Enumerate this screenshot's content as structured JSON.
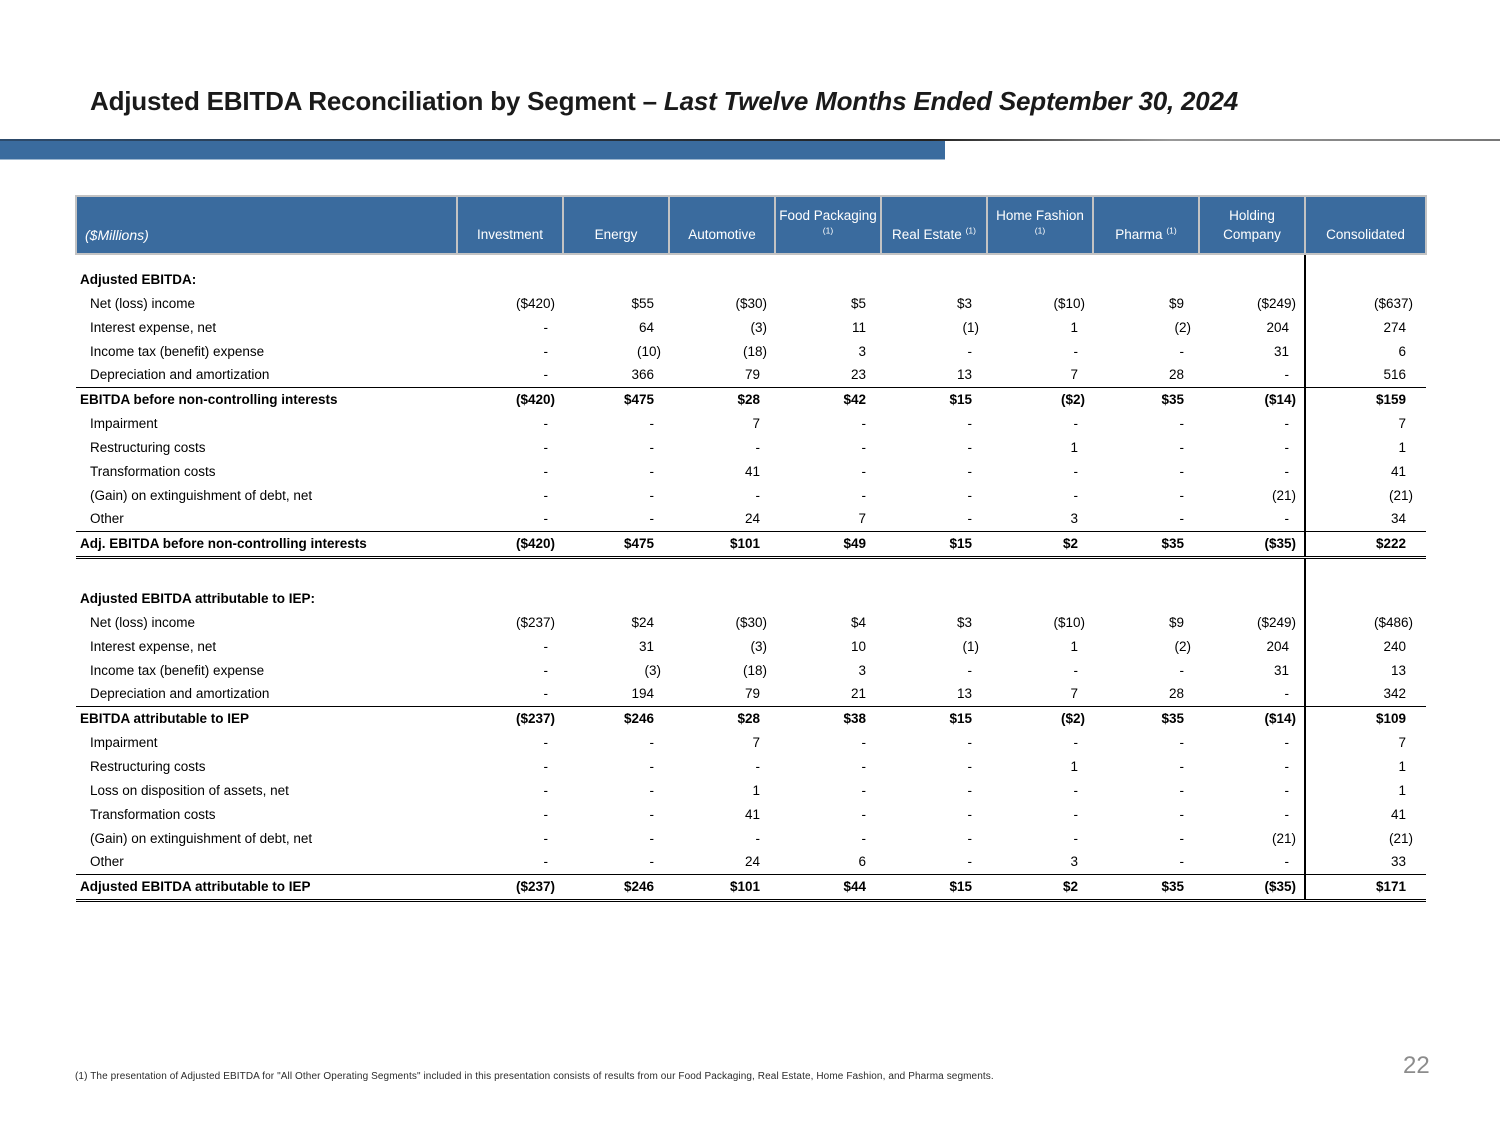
{
  "slide": {
    "title": {
      "main": "Adjusted EBITDA Reconciliation by Segment – ",
      "emphasis": "Last Twelve Months Ended September 30, 2024"
    },
    "page_number": "22",
    "footnote": "(1) The presentation of Adjusted EBITDA for \"All Other Operating Segments\" included in this presentation consists of results from our Food Packaging, Real Estate, Home Fashion, and Pharma segments."
  },
  "colors": {
    "header_bg": "#3a6b9e",
    "accent_bar": "#3a6b9e",
    "title_text": "#1a1a1a",
    "page_number_text": "#8c8c8c",
    "divider_line": "#000000"
  },
  "table": {
    "unit_label": "($Millions)",
    "columns": [
      {
        "label": "Investment",
        "footnote_ref": ""
      },
      {
        "label": "Energy",
        "footnote_ref": ""
      },
      {
        "label": "Automotive",
        "footnote_ref": ""
      },
      {
        "label": "Food Packaging",
        "footnote_ref": "(1)"
      },
      {
        "label": "Real Estate",
        "footnote_ref": "(1)"
      },
      {
        "label": "Home Fashion",
        "footnote_ref": "(1)"
      },
      {
        "label": "Pharma",
        "footnote_ref": "(1)"
      },
      {
        "label": "Holding Company",
        "footnote_ref": ""
      },
      {
        "label": "Consolidated",
        "footnote_ref": ""
      }
    ],
    "rows": [
      {
        "type": "spacer-sm",
        "label": ""
      },
      {
        "type": "section",
        "label": "Adjusted EBITDA:"
      },
      {
        "type": "data",
        "label": "Net (loss) income",
        "values": [
          "($420)",
          "$55",
          "($30)",
          "$5",
          "$3",
          "($10)",
          "$9",
          "($249)",
          "($637)"
        ]
      },
      {
        "type": "data",
        "label": "Interest expense, net",
        "values": [
          "-",
          "64",
          "(3)",
          "11",
          "(1)",
          "1",
          "(2)",
          "204",
          "274"
        ]
      },
      {
        "type": "data",
        "label": "Income tax (benefit) expense",
        "values": [
          "-",
          "(10)",
          "(18)",
          "3",
          "-",
          "-",
          "-",
          "31",
          "6"
        ]
      },
      {
        "type": "data-rule",
        "label": "Depreciation and amortization",
        "values": [
          "-",
          "366",
          "79",
          "23",
          "13",
          "7",
          "28",
          "-",
          "516"
        ]
      },
      {
        "type": "subtotal",
        "label": "EBITDA before non-controlling interests",
        "values": [
          "($420)",
          "$475",
          "$28",
          "$42",
          "$15",
          "($2)",
          "$35",
          "($14)",
          "$159"
        ]
      },
      {
        "type": "data",
        "label": "Impairment",
        "values": [
          "-",
          "-",
          "7",
          "-",
          "-",
          "-",
          "-",
          "-",
          "7"
        ]
      },
      {
        "type": "data",
        "label": "Restructuring costs",
        "values": [
          "-",
          "-",
          "-",
          "-",
          "-",
          "1",
          "-",
          "-",
          "1"
        ]
      },
      {
        "type": "data",
        "label": "Transformation costs",
        "values": [
          "-",
          "-",
          "41",
          "-",
          "-",
          "-",
          "-",
          "-",
          "41"
        ]
      },
      {
        "type": "data",
        "label": "(Gain) on extinguishment of debt, net",
        "values": [
          "-",
          "-",
          "-",
          "-",
          "-",
          "-",
          "-",
          "(21)",
          "(21)"
        ]
      },
      {
        "type": "data-rule",
        "label": "Other",
        "values": [
          "-",
          "-",
          "24",
          "7",
          "-",
          "3",
          "-",
          "-",
          "34"
        ]
      },
      {
        "type": "total",
        "label": "Adj. EBITDA before non-controlling interests",
        "values": [
          "($420)",
          "$475",
          "$101",
          "$49",
          "$15",
          "$2",
          "$35",
          "($35)",
          "$222"
        ]
      },
      {
        "type": "spacer-lg",
        "label": ""
      },
      {
        "type": "section",
        "label": "Adjusted EBITDA attributable to IEP:"
      },
      {
        "type": "data",
        "label": "Net (loss) income",
        "values": [
          "($237)",
          "$24",
          "($30)",
          "$4",
          "$3",
          "($10)",
          "$9",
          "($249)",
          "($486)"
        ]
      },
      {
        "type": "data",
        "label": "Interest expense, net",
        "values": [
          "-",
          "31",
          "(3)",
          "10",
          "(1)",
          "1",
          "(2)",
          "204",
          "240"
        ]
      },
      {
        "type": "data",
        "label": "Income tax (benefit) expense",
        "values": [
          "-",
          "(3)",
          "(18)",
          "3",
          "-",
          "-",
          "-",
          "31",
          "13"
        ]
      },
      {
        "type": "data-rule",
        "label": "Depreciation and amortization",
        "values": [
          "-",
          "194",
          "79",
          "21",
          "13",
          "7",
          "28",
          "-",
          "342"
        ]
      },
      {
        "type": "subtotal",
        "label": "EBITDA attributable to IEP",
        "values": [
          "($237)",
          "$246",
          "$28",
          "$38",
          "$15",
          "($2)",
          "$35",
          "($14)",
          "$109"
        ]
      },
      {
        "type": "data",
        "label": "Impairment",
        "values": [
          "-",
          "-",
          "7",
          "-",
          "-",
          "-",
          "-",
          "-",
          "7"
        ]
      },
      {
        "type": "data",
        "label": "Restructuring costs",
        "values": [
          "-",
          "-",
          "-",
          "-",
          "-",
          "1",
          "-",
          "-",
          "1"
        ]
      },
      {
        "type": "data",
        "label": "Loss on disposition of assets, net",
        "values": [
          "-",
          "-",
          "1",
          "-",
          "-",
          "-",
          "-",
          "-",
          "1"
        ]
      },
      {
        "type": "data",
        "label": "Transformation costs",
        "values": [
          "-",
          "-",
          "41",
          "-",
          "-",
          "-",
          "-",
          "-",
          "41"
        ]
      },
      {
        "type": "data",
        "label": "(Gain) on extinguishment of debt, net",
        "values": [
          "-",
          "-",
          "-",
          "-",
          "-",
          "-",
          "-",
          "(21)",
          "(21)"
        ]
      },
      {
        "type": "data-rule",
        "label": "Other",
        "values": [
          "-",
          "-",
          "24",
          "6",
          "-",
          "3",
          "-",
          "-",
          "33"
        ]
      },
      {
        "type": "total",
        "label": "Adjusted EBITDA attributable to IEP",
        "values": [
          "($237)",
          "$246",
          "$101",
          "$44",
          "$15",
          "$2",
          "$35",
          "($35)",
          "$171"
        ]
      }
    ]
  }
}
